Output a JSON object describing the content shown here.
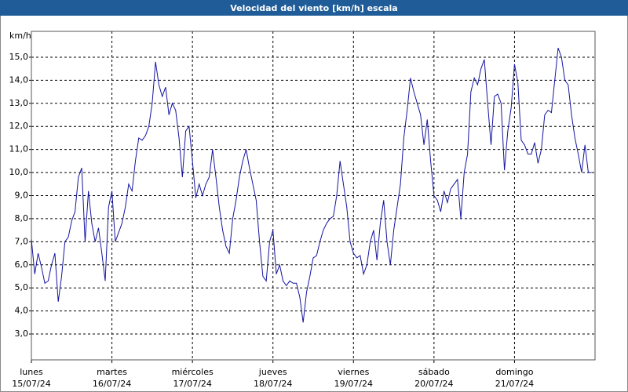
{
  "chart_data": {
    "type": "line",
    "title": "Velocidad del viento [km/h] escala",
    "y_unit": "km/h",
    "x": [
      0,
      1,
      2,
      3,
      4,
      5,
      6,
      7,
      8,
      9,
      10,
      11,
      12,
      13,
      14,
      15,
      16,
      17,
      18,
      19,
      20,
      21,
      22,
      23,
      24,
      25,
      26,
      27,
      28,
      29,
      30,
      31,
      32,
      33,
      34,
      35,
      36,
      37,
      38,
      39,
      40,
      41,
      42,
      43,
      44,
      45,
      46,
      47,
      48,
      49,
      50,
      51,
      52,
      53,
      54,
      55,
      56,
      57,
      58,
      59,
      60,
      61,
      62,
      63,
      64,
      65,
      66,
      67,
      68,
      69,
      70,
      71,
      72,
      73,
      74,
      75,
      76,
      77,
      78,
      79,
      80,
      81,
      82,
      83,
      84,
      85,
      86,
      87,
      88,
      89,
      90,
      91,
      92,
      93,
      94,
      95,
      96,
      97,
      98,
      99,
      100,
      101,
      102,
      103,
      104,
      105,
      106,
      107,
      108,
      109,
      110,
      111,
      112,
      113,
      114,
      115,
      116,
      117,
      118,
      119,
      120,
      121,
      122,
      123,
      124,
      125,
      126,
      127,
      128,
      129,
      130,
      131,
      132,
      133,
      134,
      135,
      136,
      137,
      138,
      139,
      140,
      141,
      142,
      143,
      144,
      145,
      146,
      147,
      148,
      149,
      150,
      151,
      152,
      153,
      154,
      155,
      156,
      157,
      158,
      159,
      160,
      161,
      162,
      163,
      164,
      165,
      166,
      167
    ],
    "series": [
      {
        "name": "Velocidad del viento",
        "color": "#1414a0",
        "values": [
          7.1,
          5.6,
          6.5,
          5.9,
          5.2,
          5.3,
          6.0,
          6.5,
          4.4,
          5.5,
          7.0,
          7.2,
          7.9,
          8.3,
          9.8,
          10.2,
          7.0,
          9.2,
          7.8,
          7.0,
          7.6,
          6.5,
          5.3,
          8.5,
          9.2,
          7.0,
          7.4,
          7.8,
          8.5,
          9.5,
          9.2,
          10.5,
          11.5,
          11.4,
          11.6,
          12.0,
          13.0,
          14.8,
          13.8,
          13.3,
          13.7,
          12.5,
          13.0,
          12.7,
          11.5,
          9.8,
          11.8,
          12.0,
          10.5,
          8.9,
          9.5,
          9.0,
          9.5,
          9.8,
          11.0,
          9.8,
          8.5,
          7.5,
          6.8,
          6.5,
          8.0,
          8.8,
          9.8,
          10.5,
          11.0,
          10.2,
          9.5,
          8.8,
          7.0,
          5.5,
          5.3,
          7.0,
          7.5,
          5.6,
          6.0,
          5.3,
          5.1,
          5.3,
          5.2,
          5.2,
          4.6,
          3.5,
          4.8,
          5.5,
          6.3,
          6.4,
          7.0,
          7.5,
          7.8,
          8.0,
          8.1,
          9.0,
          10.5,
          9.5,
          8.5,
          7.0,
          6.5,
          6.3,
          6.4,
          5.6,
          6.0,
          7.0,
          7.5,
          6.2,
          7.8,
          8.8,
          7.0,
          6.0,
          7.5,
          8.5,
          9.5,
          11.5,
          12.7,
          14.1,
          13.5,
          13.0,
          12.5,
          11.2,
          12.3,
          10.5,
          9.0,
          8.8,
          8.3,
          9.2,
          8.7,
          9.3,
          9.5,
          9.7,
          8.0,
          10.0,
          10.8,
          13.5,
          14.1,
          13.8,
          14.5,
          14.9,
          13.0,
          11.2,
          13.3,
          13.4,
          13.0,
          10.1,
          11.8,
          12.8,
          14.7,
          13.9,
          11.4,
          11.2,
          10.8,
          10.8,
          11.3,
          10.4,
          11.0,
          12.5,
          12.7,
          12.6,
          14.0,
          15.4,
          15.0,
          14.0,
          13.8,
          12.5,
          11.5,
          10.8,
          10.0,
          11.2,
          10.0,
          10.0
        ]
      }
    ],
    "xlim": [
      0,
      168
    ],
    "xticks": [
      {
        "value": 0,
        "label": "lunes"
      },
      {
        "value": 24,
        "label": "martes"
      },
      {
        "value": 48,
        "label": "miércoles"
      },
      {
        "value": 72,
        "label": "jueves"
      },
      {
        "value": 96,
        "label": "viernes"
      },
      {
        "value": 120,
        "label": "sábado"
      },
      {
        "value": 144,
        "label": "domingo"
      }
    ],
    "xtick_dates": [
      "15/07/24",
      "16/07/24",
      "17/07/24",
      "18/07/24",
      "19/07/24",
      "20/07/24",
      "21/07/24"
    ],
    "ylim": [
      1.88,
      16.12
    ],
    "yticks": [
      {
        "value": 3,
        "label": "3,0"
      },
      {
        "value": 4,
        "label": "4,0"
      },
      {
        "value": 5,
        "label": "5,0"
      },
      {
        "value": 6,
        "label": "6,0"
      },
      {
        "value": 7,
        "label": "7,0"
      },
      {
        "value": 8,
        "label": "8,0"
      },
      {
        "value": 9,
        "label": "9,0"
      },
      {
        "value": 10,
        "label": "10,0"
      },
      {
        "value": 11,
        "label": "11,0"
      },
      {
        "value": 12,
        "label": "12,0"
      },
      {
        "value": 13,
        "label": "13,0"
      },
      {
        "value": 14,
        "label": "14,0"
      },
      {
        "value": 15,
        "label": "15,0"
      }
    ],
    "grid": true
  }
}
